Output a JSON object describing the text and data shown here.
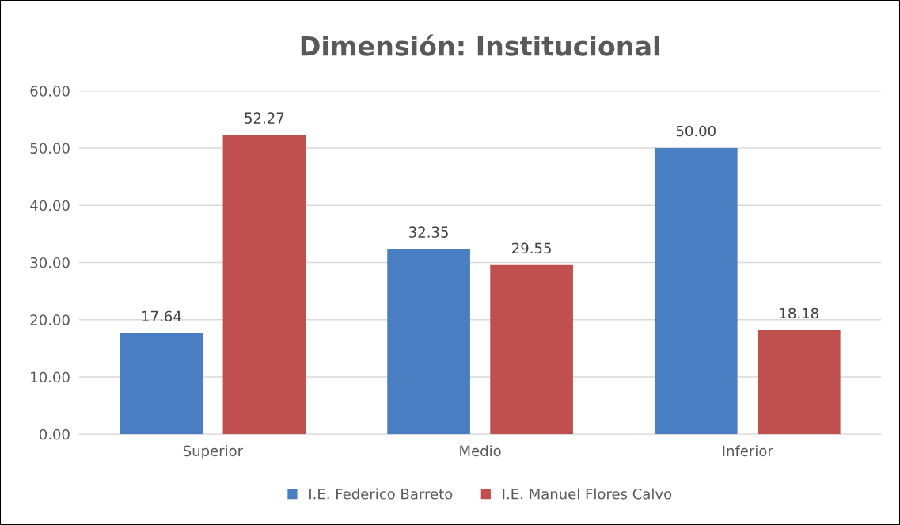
{
  "chart_data": {
    "type": "bar",
    "title": "Dimensión: Institucional",
    "categories": [
      "Superior",
      "Medio",
      "Inferior"
    ],
    "series": [
      {
        "name": "I.E. Federico Barreto",
        "color": "#4a7ec2",
        "values": [
          17.64,
          32.35,
          50.0
        ],
        "value_labels": [
          "17.64",
          "32.35",
          "50.00"
        ]
      },
      {
        "name": "I.E. Manuel Flores Calvo",
        "color": "#c0504d",
        "values": [
          52.27,
          29.55,
          18.18
        ],
        "value_labels": [
          "52.27",
          "29.55",
          "18.18"
        ]
      }
    ],
    "ylim": [
      0,
      60
    ],
    "yticks": [
      {
        "value": 0,
        "label": "0.00"
      },
      {
        "value": 10,
        "label": "10.00"
      },
      {
        "value": 20,
        "label": "20.00"
      },
      {
        "value": 30,
        "label": "30.00"
      },
      {
        "value": 40,
        "label": "40.00"
      },
      {
        "value": 50,
        "label": "50.00"
      },
      {
        "value": 60,
        "label": "60.00"
      }
    ],
    "grid": "y",
    "legend": "bottom"
  }
}
